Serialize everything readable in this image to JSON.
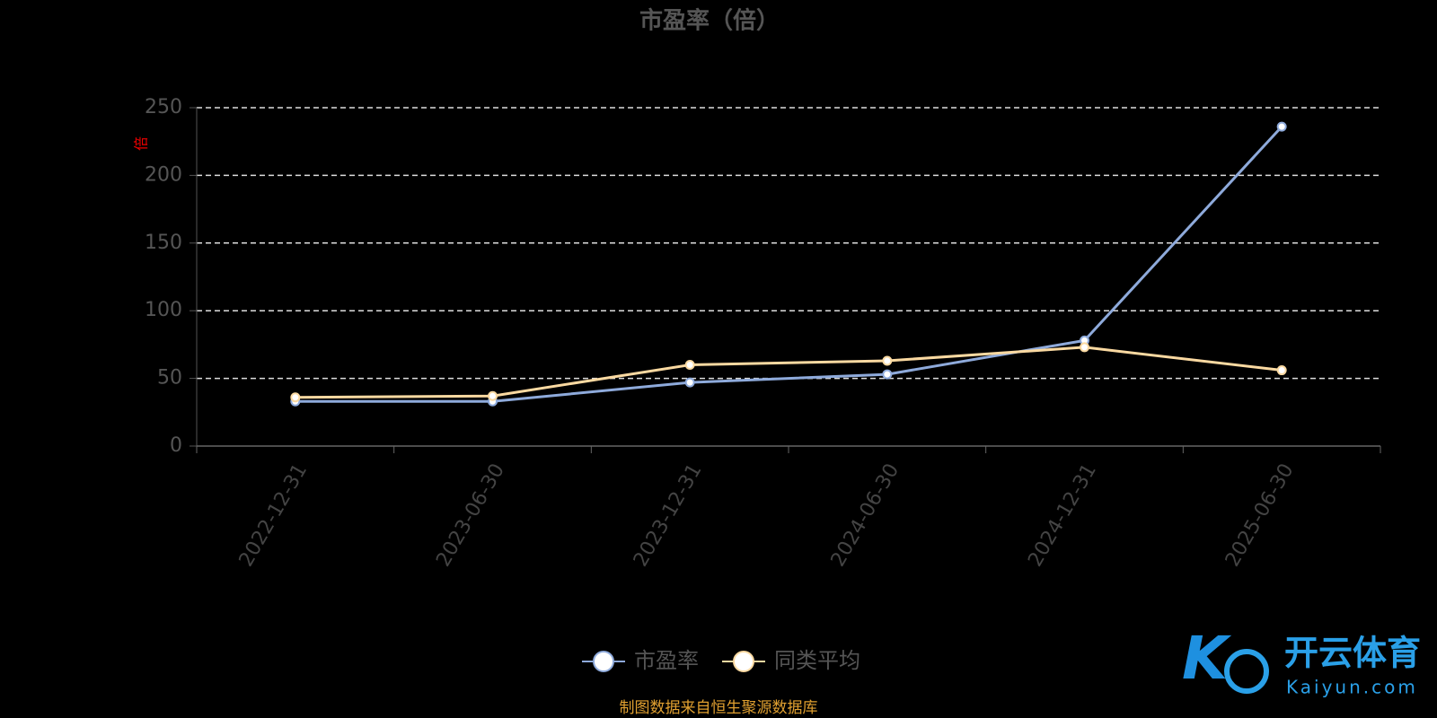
{
  "chart_data": {
    "type": "line",
    "title": "市盈率（倍）",
    "y_axis_label": "倍",
    "categories": [
      "2022-12-31",
      "2023-06-30",
      "2023-12-31",
      "2024-06-30",
      "2024-12-31",
      "2025-06-30"
    ],
    "series": [
      {
        "name": "市盈率",
        "color": "#8eaadb",
        "values": [
          33,
          33,
          47,
          53,
          78,
          236
        ]
      },
      {
        "name": "同类平均",
        "color": "#fad9a1",
        "values": [
          36,
          37,
          60,
          63,
          73,
          56
        ]
      }
    ],
    "ylim": [
      0,
      250
    ],
    "yticks": [
      0,
      50,
      100,
      150,
      200,
      250
    ],
    "grid": true,
    "source": "制图数据来自恒生聚源数据库"
  },
  "watermark": {
    "brand": "开云体育",
    "site": "Kaiyun.com"
  }
}
